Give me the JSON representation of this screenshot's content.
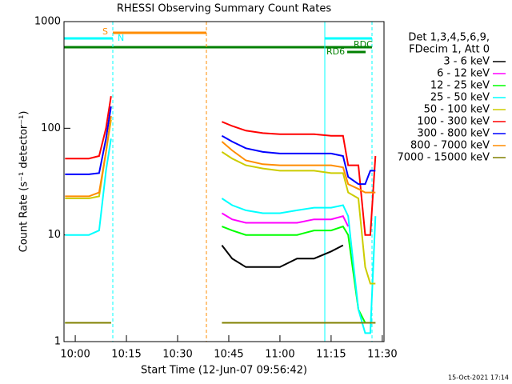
{
  "chart_data": {
    "type": "line",
    "title": "RHESSI Observing Summary Count Rates",
    "xlabel": "Start Time (12-Jun-07 09:56:42)",
    "ylabel": "Count Rate (s⁻¹ detector⁻¹)",
    "log_y": true,
    "legend_title": [
      "Det 1,3,4,5,6,9,",
      "FDecim 1, Att 0"
    ],
    "footer": "15-Oct-2021 17:14",
    "annotations": [
      "S",
      "N",
      "RDC",
      "RD6"
    ],
    "xlim": [
      596.7,
      690.5
    ],
    "xticks": [
      {
        "value": 600,
        "label": "10:00"
      },
      {
        "value": 615,
        "label": "10:15"
      },
      {
        "value": 630,
        "label": "10:30"
      },
      {
        "value": 645,
        "label": "10:45"
      },
      {
        "value": 660,
        "label": "11:00"
      },
      {
        "value": 675,
        "label": "11:15"
      },
      {
        "value": 690,
        "label": "11:30"
      }
    ],
    "ylim": [
      1,
      1000
    ],
    "yticks": [
      1,
      10,
      100,
      1000
    ],
    "x": [
      597,
      600,
      604,
      607,
      609,
      610.5,
      630,
      643,
      646,
      650,
      655,
      660,
      665,
      670,
      675,
      678.5,
      680,
      683,
      685,
      686.5,
      688
    ],
    "series": [
      {
        "name": "3 - 6 keV",
        "color": "#000000",
        "values": [
          null,
          null,
          null,
          null,
          null,
          null,
          null,
          8,
          6,
          5,
          5,
          5,
          6,
          6,
          7,
          8,
          null,
          null,
          null,
          null,
          null
        ]
      },
      {
        "name": "6 - 12 keV",
        "color": "#ff00ff",
        "values": [
          null,
          null,
          null,
          null,
          null,
          null,
          null,
          16,
          14,
          13,
          13,
          13,
          13,
          14,
          14,
          15,
          12,
          null,
          null,
          null,
          null
        ]
      },
      {
        "name": "12 - 25 keV",
        "color": "#00ff00",
        "values": [
          1.5,
          1.5,
          1.5,
          1.5,
          1.5,
          1.5,
          null,
          12,
          11,
          10,
          10,
          10,
          10,
          11,
          11,
          12,
          10,
          2,
          1.5,
          1.5,
          1.5
        ]
      },
      {
        "name": "25 - 50 keV",
        "color": "#00ffff",
        "values": [
          10,
          10,
          10,
          11,
          40,
          80,
          null,
          22,
          19,
          17,
          16,
          16,
          17,
          18,
          18,
          19,
          15,
          2,
          1.2,
          1.2,
          15
        ]
      },
      {
        "name": "50 - 100 keV",
        "color": "#cccc00",
        "values": [
          22,
          22,
          22,
          23,
          60,
          120,
          null,
          60,
          52,
          45,
          42,
          40,
          40,
          40,
          38,
          38,
          25,
          22,
          5,
          3.5,
          3.5
        ]
      },
      {
        "name": "100 - 300 keV",
        "color": "#ff0000",
        "values": [
          52,
          52,
          52,
          55,
          100,
          200,
          null,
          115,
          105,
          95,
          90,
          88,
          88,
          88,
          85,
          85,
          45,
          45,
          10,
          10,
          55
        ]
      },
      {
        "name": "300 - 800 keV",
        "color": "#0000ff",
        "values": [
          37,
          37,
          37,
          38,
          80,
          160,
          null,
          85,
          75,
          65,
          60,
          58,
          58,
          58,
          58,
          55,
          35,
          30,
          30,
          40,
          40
        ]
      },
      {
        "name": "800 - 7000 keV",
        "color": "#ff8c00",
        "values": [
          23,
          23,
          23,
          25,
          60,
          130,
          null,
          75,
          62,
          50,
          46,
          45,
          45,
          45,
          45,
          43,
          30,
          27,
          25,
          25,
          25
        ]
      },
      {
        "name": "7000 - 15000 keV",
        "color": "#808000",
        "values": [
          1.5,
          1.5,
          1.5,
          1.5,
          1.5,
          1.5,
          null,
          1.5,
          1.5,
          1.5,
          1.5,
          1.5,
          1.5,
          1.5,
          1.5,
          1.5,
          1.5,
          1.5,
          1.5,
          1.5,
          1.5
        ]
      }
    ]
  }
}
